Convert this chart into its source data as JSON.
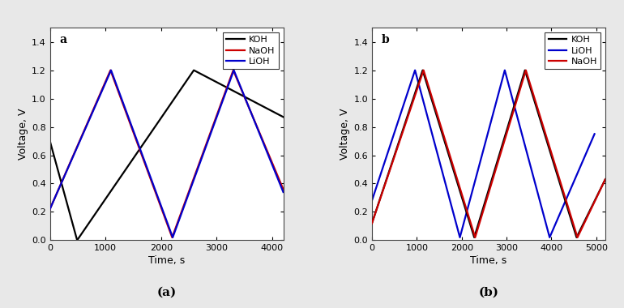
{
  "panel_a": {
    "label": "a",
    "xlabel": "Time, s",
    "ylabel": "Voltage, V",
    "xlim": [
      0,
      4200
    ],
    "ylim": [
      0,
      1.5
    ],
    "xticks": [
      0,
      1000,
      2000,
      3000,
      4000
    ],
    "yticks": [
      0.0,
      0.2,
      0.4,
      0.6,
      0.8,
      1.0,
      1.2,
      1.4
    ],
    "lines": [
      {
        "name": "KOH",
        "color": "#000000",
        "keypoints": [
          [
            0,
            0.7
          ],
          [
            490,
            0.0
          ],
          [
            2590,
            1.2
          ],
          [
            4200,
            0.87
          ]
        ],
        "zorder": 2
      },
      {
        "name": "NaOH",
        "color": "#cc0000",
        "keypoints": [
          [
            0,
            0.22
          ],
          [
            1090,
            1.2
          ],
          [
            2200,
            0.02
          ],
          [
            3300,
            1.2
          ],
          [
            4200,
            0.36
          ]
        ],
        "zorder": 3
      },
      {
        "name": "LiOH",
        "color": "#0000cc",
        "keypoints": [
          [
            0,
            0.22
          ],
          [
            1100,
            1.2
          ],
          [
            2210,
            0.02
          ],
          [
            3310,
            1.2
          ],
          [
            4200,
            0.34
          ]
        ],
        "zorder": 3
      }
    ],
    "legend_order": [
      "KOH",
      "NaOH",
      "LiOH"
    ],
    "caption": "(a)"
  },
  "panel_b": {
    "label": "b",
    "xlabel": "Time, s",
    "ylabel": "Voltage, V",
    "xlim": [
      0,
      5200
    ],
    "ylim": [
      0,
      1.5
    ],
    "xticks": [
      0,
      1000,
      2000,
      3000,
      4000,
      5000
    ],
    "yticks": [
      0.0,
      0.2,
      0.4,
      0.6,
      0.8,
      1.0,
      1.2,
      1.4
    ],
    "lines": [
      {
        "name": "KOH",
        "color": "#000000",
        "keypoints": [
          [
            0,
            0.12
          ],
          [
            1130,
            1.2
          ],
          [
            2280,
            0.02
          ],
          [
            3410,
            1.2
          ],
          [
            4560,
            0.02
          ],
          [
            5200,
            0.43
          ]
        ],
        "zorder": 3
      },
      {
        "name": "LiOH",
        "color": "#0000cc",
        "keypoints": [
          [
            0,
            0.28
          ],
          [
            960,
            1.2
          ],
          [
            1960,
            0.02
          ],
          [
            2960,
            1.2
          ],
          [
            3960,
            0.02
          ],
          [
            4960,
            0.75
          ]
        ],
        "zorder": 2
      },
      {
        "name": "NaOH",
        "color": "#cc0000",
        "keypoints": [
          [
            0,
            0.12
          ],
          [
            1150,
            1.2
          ],
          [
            2300,
            0.02
          ],
          [
            3430,
            1.2
          ],
          [
            4580,
            0.02
          ],
          [
            5200,
            0.43
          ]
        ],
        "zorder": 3
      }
    ],
    "legend_order": [
      "KOH",
      "LiOH",
      "NaOH"
    ],
    "caption": "(b)"
  },
  "background_color": "#e8e8e8",
  "plot_bg_color": "#ffffff",
  "linewidth": 1.6
}
